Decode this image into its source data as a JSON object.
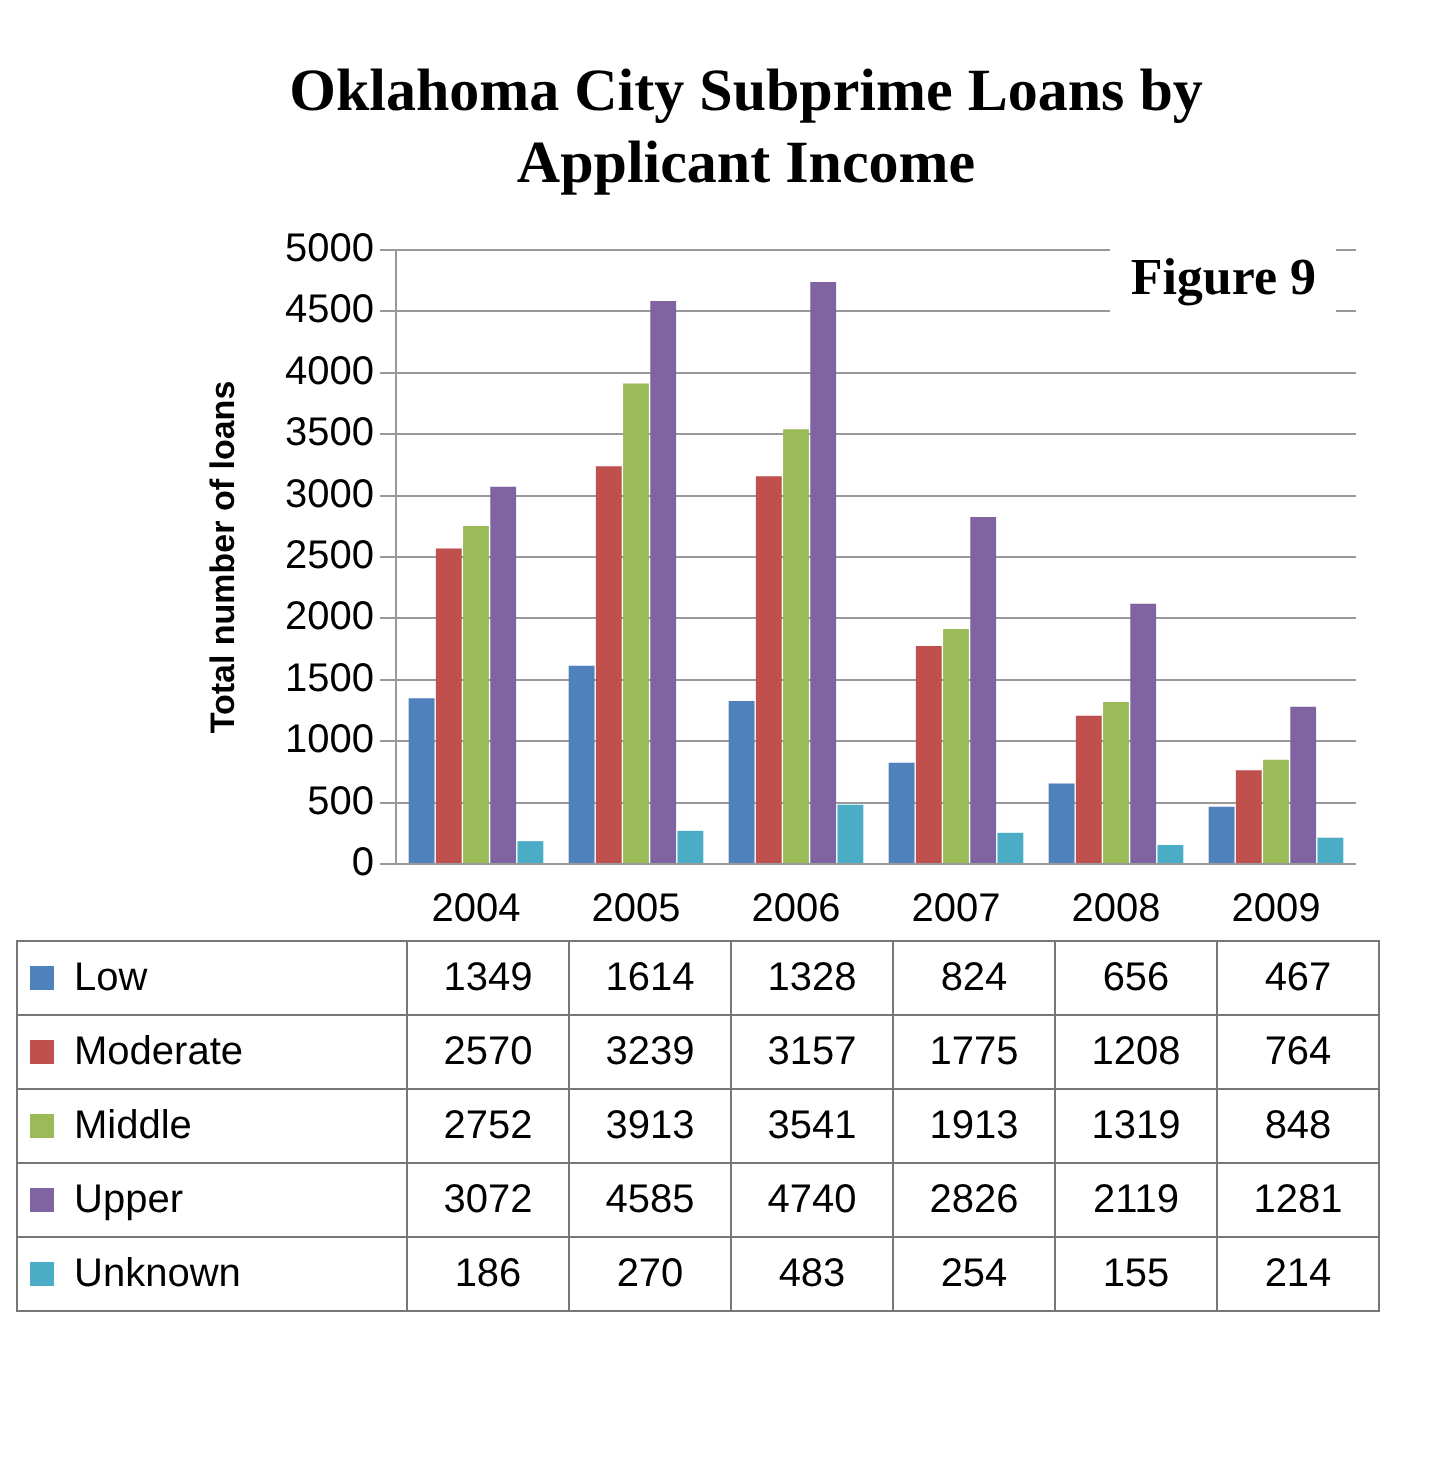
{
  "chart_data": {
    "type": "bar",
    "title": "Oklahoma City Subprime Loans by Applicant Income",
    "ylabel": "Total number of loans",
    "categories": [
      "2004",
      "2005",
      "2006",
      "2007",
      "2008",
      "2009"
    ],
    "series": [
      {
        "name": "Low",
        "color": "#4f81bd",
        "values": [
          1349,
          1614,
          1328,
          824,
          656,
          467
        ]
      },
      {
        "name": "Moderate",
        "color": "#c0504d",
        "values": [
          2570,
          3239,
          3157,
          1775,
          1208,
          764
        ]
      },
      {
        "name": "Middle",
        "color": "#9bbb59",
        "values": [
          2752,
          3913,
          3541,
          1913,
          1319,
          848
        ]
      },
      {
        "name": "Upper",
        "color": "#8064a2",
        "values": [
          3072,
          4585,
          4740,
          2826,
          2119,
          1281
        ]
      },
      {
        "name": "Unknown",
        "color": "#4bacc6",
        "values": [
          186,
          270,
          483,
          254,
          155,
          214
        ]
      }
    ],
    "ylim": [
      0,
      5000
    ],
    "yticks": [
      0,
      500,
      1000,
      1500,
      2000,
      2500,
      3000,
      3500,
      4000,
      4500,
      5000
    ],
    "grid": "y",
    "legend": "bottom",
    "data_labels": true,
    "annotations": [
      "Figure 9"
    ]
  }
}
